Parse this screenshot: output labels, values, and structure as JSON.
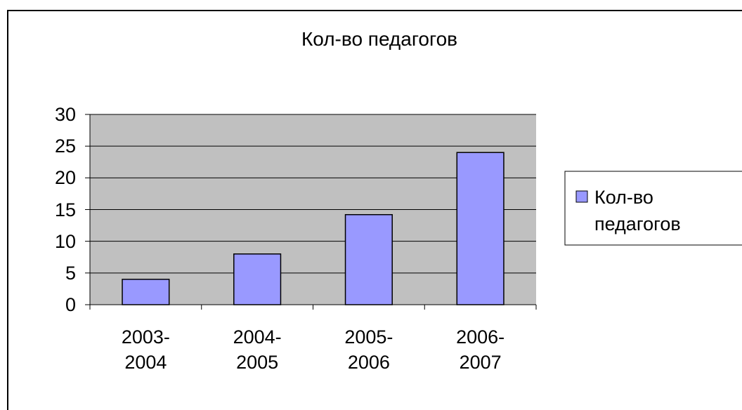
{
  "chart_data": {
    "type": "bar",
    "title": "Кол-во педагогов",
    "categories": [
      "2003-2004",
      "2004-2005",
      "2005-2006",
      "2006-2007"
    ],
    "series": [
      {
        "name": "Кол-во педагогов",
        "color": "#9999ff",
        "values": [
          4,
          8,
          14.2,
          24
        ]
      }
    ],
    "ylim": [
      0,
      30
    ],
    "yticks": [
      0,
      5,
      10,
      15,
      20,
      25,
      30
    ],
    "grid": true,
    "legend": "right"
  }
}
